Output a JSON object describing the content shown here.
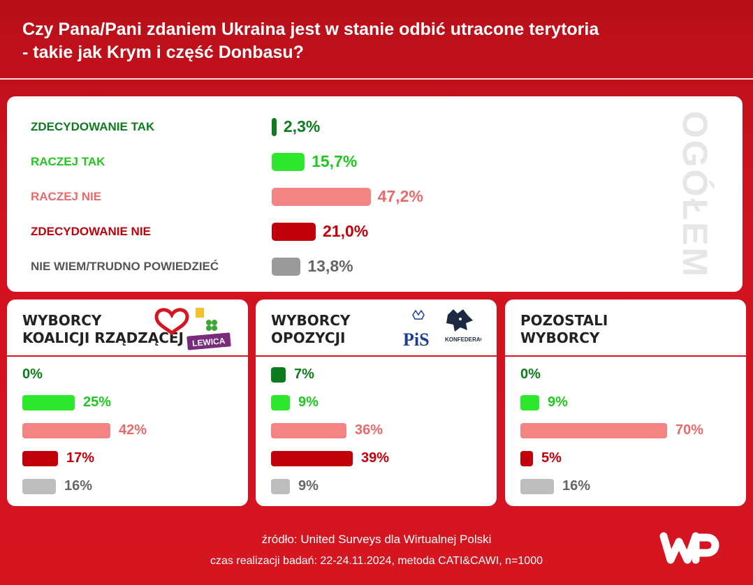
{
  "title": "Czy Pana/Pani zdaniem Ukraina jest w stanie odbić utracone terytoria - takie jak Krym i część Donbasu?",
  "title_lines": [
    "Czy Pana/Pani zdaniem Ukraina jest w stanie odbić utracone terytoria",
    "- takie jak Krym i część Donbasu?"
  ],
  "colors": {
    "background": "#d2131f",
    "dark_green": "#0e7c1e",
    "light_green": "#2ee82e",
    "light_red": "#f48484",
    "dark_red": "#c0000b",
    "gray": "#9a9a9a",
    "light_gray": "#bdbdbd"
  },
  "chart_data": [
    {
      "type": "bar",
      "title": "OGÓŁEM",
      "categories": [
        "ZDECYDOWANIE TAK",
        "RACZEJ TAK",
        "RACZEJ NIE",
        "ZDECYDOWANIE NIE",
        "NIE WIEM/TRUDNO POWIEDZIEĆ"
      ],
      "values": [
        2.3,
        15.7,
        47.2,
        21.0,
        13.8
      ],
      "value_labels": [
        "2,3%",
        "15,7%",
        "47,2%",
        "21,0%",
        "13,8%"
      ],
      "unit": "%"
    },
    {
      "type": "bar",
      "title": "WYBORCY KOALICJI RZĄDZĄCEJ",
      "categories": [
        "ZDECYDOWANIE TAK",
        "RACZEJ TAK",
        "RACZEJ NIE",
        "ZDECYDOWANIE NIE",
        "NIE WIEM/TRUDNO POWIEDZIEĆ"
      ],
      "values": [
        0,
        25,
        42,
        17,
        16
      ],
      "value_labels": [
        "0%",
        "25%",
        "42%",
        "17%",
        "16%"
      ],
      "unit": "%"
    },
    {
      "type": "bar",
      "title": "WYBORCY OPOZYCJI",
      "categories": [
        "ZDECYDOWANIE TAK",
        "RACZEJ TAK",
        "RACZEJ NIE",
        "ZDECYDOWANIE NIE",
        "NIE WIEM/TRUDNO POWIEDZIEĆ"
      ],
      "values": [
        7,
        9,
        36,
        39,
        9
      ],
      "value_labels": [
        "7%",
        "9%",
        "36%",
        "39%",
        "9%"
      ],
      "unit": "%"
    },
    {
      "type": "bar",
      "title": "POZOSTALI WYBORCY",
      "categories": [
        "ZDECYDOWANIE TAK",
        "RACZEJ TAK",
        "RACZEJ NIE",
        "ZDECYDOWANIE NIE",
        "NIE WIEM/TRUDNO POWIEDZIEĆ"
      ],
      "values": [
        0,
        9,
        70,
        5,
        16
      ],
      "value_labels": [
        "0%",
        "9%",
        "70%",
        "5%",
        "16%"
      ],
      "unit": "%"
    }
  ],
  "groups": [
    {
      "title_lines": [
        "WYBORCY",
        "KOALICJI RZĄDZĄCEJ"
      ],
      "logos": [
        "heart-logo",
        "koalicja-clover-logo",
        "LEWICA"
      ]
    },
    {
      "title_lines": [
        "WYBORCY",
        "OPOZYCJI"
      ],
      "logos": [
        "PiS",
        "KONFEDERACJA"
      ]
    },
    {
      "title_lines": [
        "POZOSTALI",
        "WYBORCY"
      ],
      "logos": []
    }
  ],
  "footer": {
    "source": "źródło: United Surveys dla Wirtualnej Polski",
    "method": "czas realizacji badań: 22-24.11.2024, metoda CATI&CAWI, n=1000",
    "brand": "WP"
  }
}
